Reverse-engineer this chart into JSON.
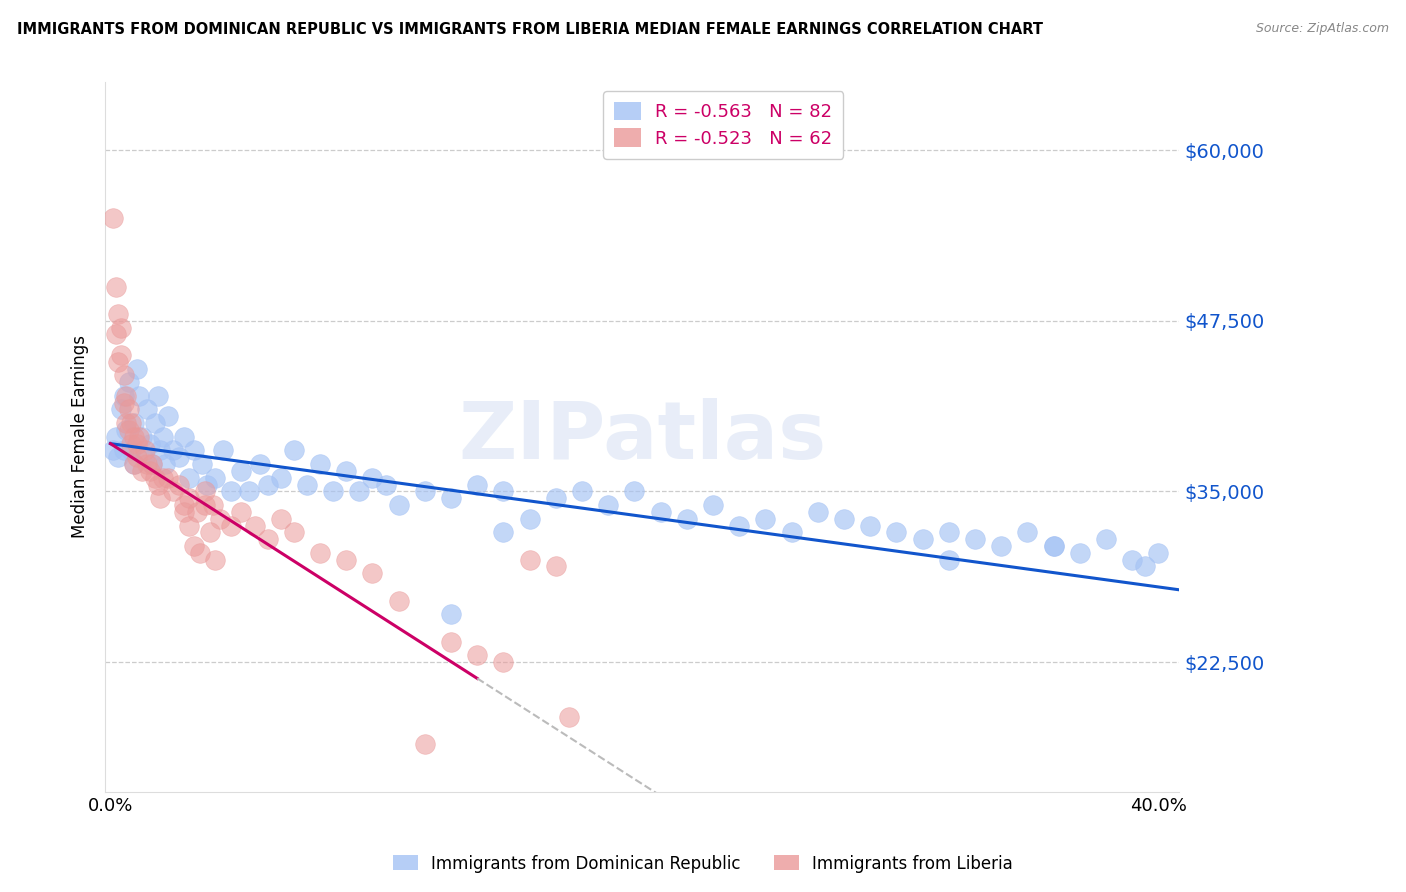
{
  "title": "IMMIGRANTS FROM DOMINICAN REPUBLIC VS IMMIGRANTS FROM LIBERIA MEDIAN FEMALE EARNINGS CORRELATION CHART",
  "source": "Source: ZipAtlas.com",
  "ylabel": "Median Female Earnings",
  "ytick_labels": [
    "$60,000",
    "$47,500",
    "$35,000",
    "$22,500"
  ],
  "ytick_values": [
    60000,
    47500,
    35000,
    22500
  ],
  "ymin": 13000,
  "ymax": 65000,
  "xmin": -0.002,
  "xmax": 0.408,
  "blue_color": "#a4c2f4",
  "pink_color": "#ea9999",
  "blue_line_color": "#1155cc",
  "pink_line_color": "#cc0066",
  "dashed_line_color": "#bbbbbb",
  "watermark": "ZIPatlas",
  "legend_r1": "R = -0.563",
  "legend_n1": "N = 82",
  "legend_r2": "R = -0.523",
  "legend_n2": "N = 62",
  "legend_color_r": "#cc0066",
  "legend_color_n": "#1155cc",
  "dr_scatter_x": [
    0.001,
    0.002,
    0.003,
    0.004,
    0.005,
    0.005,
    0.006,
    0.007,
    0.008,
    0.009,
    0.009,
    0.01,
    0.011,
    0.012,
    0.013,
    0.014,
    0.015,
    0.016,
    0.017,
    0.018,
    0.019,
    0.02,
    0.021,
    0.022,
    0.024,
    0.026,
    0.028,
    0.03,
    0.032,
    0.035,
    0.037,
    0.04,
    0.043,
    0.046,
    0.05,
    0.053,
    0.057,
    0.06,
    0.065,
    0.07,
    0.075,
    0.08,
    0.085,
    0.09,
    0.095,
    0.1,
    0.105,
    0.11,
    0.12,
    0.13,
    0.14,
    0.15,
    0.16,
    0.17,
    0.18,
    0.19,
    0.2,
    0.21,
    0.22,
    0.23,
    0.24,
    0.25,
    0.26,
    0.27,
    0.28,
    0.29,
    0.3,
    0.31,
    0.32,
    0.33,
    0.34,
    0.35,
    0.36,
    0.37,
    0.38,
    0.39,
    0.395,
    0.4,
    0.32,
    0.36,
    0.13,
    0.15
  ],
  "dr_scatter_y": [
    38000,
    39000,
    37500,
    41000,
    38000,
    42000,
    39500,
    43000,
    38000,
    37000,
    40000,
    44000,
    42000,
    39000,
    37500,
    41000,
    38500,
    37000,
    40000,
    42000,
    38000,
    39000,
    37000,
    40500,
    38000,
    37500,
    39000,
    36000,
    38000,
    37000,
    35500,
    36000,
    38000,
    35000,
    36500,
    35000,
    37000,
    35500,
    36000,
    38000,
    35500,
    37000,
    35000,
    36500,
    35000,
    36000,
    35500,
    34000,
    35000,
    34500,
    35500,
    35000,
    33000,
    34500,
    35000,
    34000,
    35000,
    33500,
    33000,
    34000,
    32500,
    33000,
    32000,
    33500,
    33000,
    32500,
    32000,
    31500,
    32000,
    31500,
    31000,
    32000,
    31000,
    30500,
    31500,
    30000,
    29500,
    30500,
    30000,
    31000,
    26000,
    32000
  ],
  "liberia_scatter_x": [
    0.001,
    0.002,
    0.002,
    0.003,
    0.003,
    0.004,
    0.004,
    0.005,
    0.005,
    0.006,
    0.006,
    0.007,
    0.007,
    0.008,
    0.008,
    0.009,
    0.009,
    0.01,
    0.01,
    0.011,
    0.012,
    0.013,
    0.014,
    0.015,
    0.016,
    0.017,
    0.018,
    0.019,
    0.02,
    0.022,
    0.024,
    0.026,
    0.028,
    0.03,
    0.033,
    0.036,
    0.039,
    0.042,
    0.046,
    0.05,
    0.055,
    0.06,
    0.065,
    0.07,
    0.08,
    0.09,
    0.1,
    0.11,
    0.12,
    0.13,
    0.14,
    0.15,
    0.16,
    0.17,
    0.175,
    0.028,
    0.03,
    0.032,
    0.034,
    0.036,
    0.038,
    0.04
  ],
  "liberia_scatter_y": [
    55000,
    50000,
    46500,
    48000,
    44500,
    47000,
    45000,
    43500,
    41500,
    42000,
    40000,
    39500,
    41000,
    40000,
    38500,
    39000,
    37000,
    38500,
    37500,
    39000,
    36500,
    38000,
    37000,
    36500,
    37000,
    36000,
    35500,
    34500,
    36000,
    36000,
    35000,
    35500,
    34000,
    34500,
    33500,
    35000,
    34000,
    33000,
    32500,
    33500,
    32500,
    31500,
    33000,
    32000,
    30500,
    30000,
    29000,
    27000,
    16500,
    24000,
    23000,
    22500,
    30000,
    29500,
    18500,
    33500,
    32500,
    31000,
    30500,
    34000,
    32000,
    30000
  ]
}
